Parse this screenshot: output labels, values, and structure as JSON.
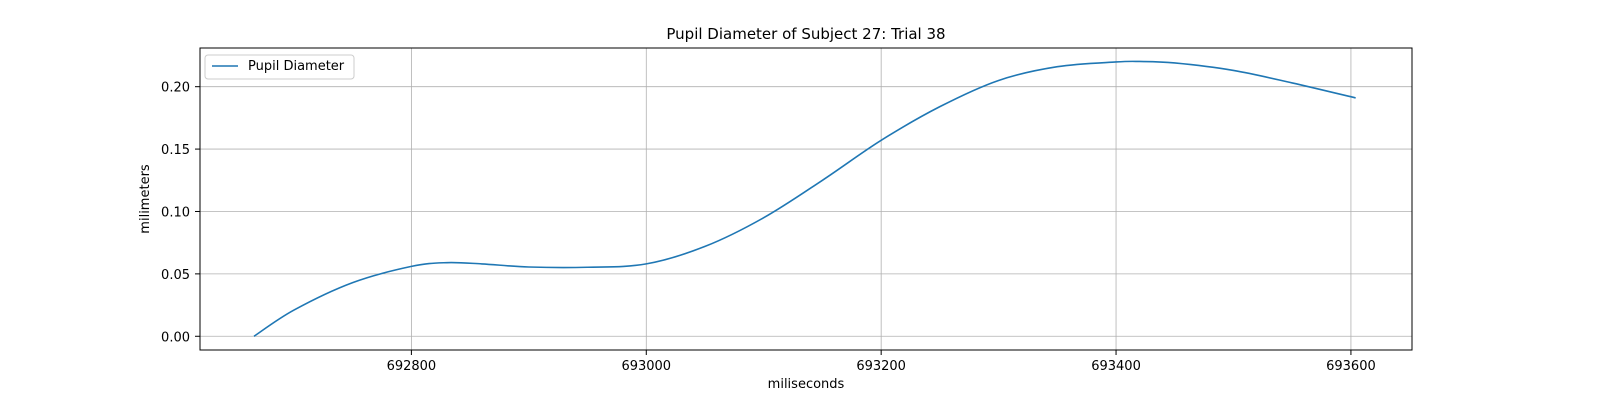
{
  "chart_data": {
    "type": "line",
    "title": "Pupil Diameter of Subject 27: Trial 38",
    "xlabel": "miliseconds",
    "ylabel": "milimeters",
    "xlim": [
      692620,
      693652
    ],
    "ylim": [
      -0.011,
      0.231
    ],
    "x_ticks": [
      692800,
      693000,
      693200,
      693400,
      693600
    ],
    "y_ticks": [
      0.0,
      0.05,
      0.1,
      0.15,
      0.2
    ],
    "y_tick_labels": [
      "0.00",
      "0.05",
      "0.10",
      "0.15",
      "0.20"
    ],
    "grid": true,
    "legend_position": "top-left",
    "series": [
      {
        "name": "Pupil Diameter",
        "color": "#1f77b4",
        "x": [
          692666,
          692700,
          692750,
          692800,
          692830,
          692860,
          692900,
          692950,
          693000,
          693050,
          693100,
          693150,
          693200,
          693250,
          693300,
          693350,
          693400,
          693420,
          693450,
          693500,
          693550,
          693604
        ],
        "y": [
          0.0,
          0.021,
          0.043,
          0.056,
          0.059,
          0.058,
          0.0555,
          0.0553,
          0.058,
          0.072,
          0.095,
          0.125,
          0.157,
          0.184,
          0.205,
          0.216,
          0.2198,
          0.2202,
          0.219,
          0.213,
          0.203,
          0.191
        ]
      }
    ]
  }
}
